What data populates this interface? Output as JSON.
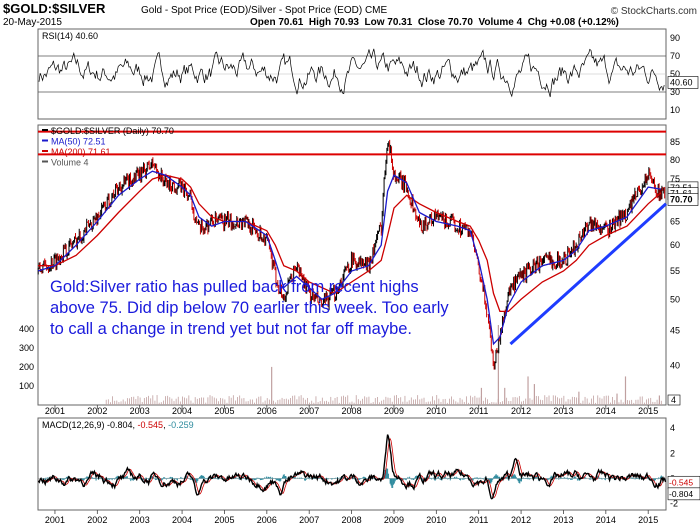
{
  "header": {
    "symbol": "$GOLD:$SILVER",
    "description": "Gold - Spot Price (EOD)/Silver - Spot Price (EOD)",
    "exchange": "CME",
    "date": "20-May-2015",
    "ohlc": "Open 70.61  High 70.93  Low 70.31  Close 70.70  Volume 4  Chg +0.08 (+0.12%)",
    "credit": "© StockCharts.com"
  },
  "annotation": {
    "lines": [
      "Gold:Silver ratio has pulled back from recent highs",
      "above 75. Did dip below 70 earlier this week. Too early",
      "to call a change in trend yet but not far off maybe."
    ]
  },
  "colors": {
    "price": "#000000",
    "price_down": "#cc0000",
    "ma50": "#1a1acc",
    "ma200": "#cc0000",
    "trendline": "#1e3cff",
    "horizontal_lines": "#dd0000",
    "volume": "#c0a0a0",
    "macd": "#000000",
    "signal": "#cc0000",
    "histogram": "#2e8b9e"
  },
  "chart_data": [
    {
      "type": "line",
      "panel": "rsi",
      "legend": "RSI(14) 40.60",
      "yticks": [
        10,
        30,
        50,
        70,
        90
      ],
      "ylim": [
        0,
        100
      ],
      "reference_lines": [
        30,
        70
      ],
      "last_value_label": "40.60",
      "last_value": 40.6
    },
    {
      "type": "line",
      "panel": "price",
      "scale": "log",
      "legend": [
        "$GOLD:$SILVER (Daily) 70.70",
        "MA(50) 72.51",
        "MA(200) 71.61",
        "Volume 4"
      ],
      "x": [
        2000.6,
        2001.0,
        2001.5,
        2002.0,
        2002.5,
        2003.0,
        2003.3,
        2003.6,
        2004.0,
        2004.2,
        2004.4,
        2004.7,
        2005.0,
        2005.5,
        2006.0,
        2006.2,
        2006.4,
        2006.7,
        2007.0,
        2007.3,
        2007.6,
        2008.0,
        2008.4,
        2008.7,
        2008.85,
        2009.0,
        2009.3,
        2009.6,
        2010.0,
        2010.5,
        2010.8,
        2011.0,
        2011.2,
        2011.35,
        2011.5,
        2011.7,
        2012.0,
        2012.5,
        2013.0,
        2013.3,
        2013.6,
        2014.0,
        2014.5,
        2015.0,
        2015.3
      ],
      "values": [
        55,
        57,
        61,
        66,
        73,
        76,
        79,
        74,
        73,
        70,
        63,
        65,
        65,
        65,
        61,
        54,
        50,
        56,
        51,
        49,
        51,
        57,
        56,
        64,
        87,
        76,
        73,
        64,
        66,
        64,
        63,
        55,
        48,
        40,
        44,
        51,
        54,
        57,
        57,
        60,
        65,
        63,
        67,
        76,
        71
      ],
      "ma50": [
        55,
        56,
        60,
        65,
        71,
        75,
        77,
        76,
        73,
        71,
        66,
        64,
        65,
        65,
        62,
        57,
        52,
        54,
        52,
        50,
        51,
        55,
        56,
        60,
        72,
        76,
        74,
        67,
        65,
        64,
        63,
        57,
        50,
        43,
        44,
        49,
        53,
        56,
        57,
        59,
        63,
        64,
        66,
        73,
        72.5
      ],
      "ma200": [
        56,
        56,
        58,
        62,
        67,
        72,
        75,
        76,
        75,
        73,
        69,
        66,
        65,
        65,
        63,
        60,
        56,
        55,
        53,
        52,
        51,
        53,
        55,
        57,
        62,
        68,
        71,
        69,
        67,
        65,
        64,
        61,
        57,
        51,
        48,
        48,
        50,
        53,
        55,
        57,
        60,
        62,
        64,
        69,
        71.6
      ],
      "ylim": [
        35,
        90
      ],
      "yticks": [
        40,
        45,
        50,
        55,
        60,
        65,
        70,
        75,
        80,
        85
      ],
      "horizontal_lines": [
        88,
        81.5
      ],
      "trendline": {
        "from": [
          2011.75,
          43
        ],
        "to": [
          2015.42,
          69
        ]
      },
      "last_value_labels": [
        "72.51",
        "71.61",
        "70.70"
      ],
      "volume_yticks": [
        100,
        200,
        300,
        400
      ],
      "volume_spikes": [
        {
          "x": 2006.1,
          "v": 200
        },
        {
          "x": 2011.05,
          "v": 90
        },
        {
          "x": 2011.45,
          "v": 420
        },
        {
          "x": 2011.6,
          "v": 90
        },
        {
          "x": 2012.15,
          "v": 150
        },
        {
          "x": 2012.3,
          "v": 110
        },
        {
          "x": 2013.35,
          "v": 70
        },
        {
          "x": 2014.25,
          "v": 60
        },
        {
          "x": 2014.45,
          "v": 150
        },
        {
          "x": 2015.25,
          "v": 50
        }
      ],
      "volume_last_label": "4"
    },
    {
      "type": "line",
      "panel": "macd",
      "legend": "MACD(12,26,9) -0.804, -0.545, -0.259",
      "legend_parts": [
        "MACD(12,26,9) -0.804, ",
        "-0.545",
        ", ",
        "-0.259"
      ],
      "yticks": [
        -2,
        0,
        2,
        4
      ],
      "ylim": [
        -2.5,
        4.8
      ],
      "last_value_labels": [
        "-0.545",
        "-0.804"
      ],
      "spikes": [
        {
          "x": 2008.85,
          "v": 4.5
        },
        {
          "x": 2011.3,
          "v": -2.2
        },
        {
          "x": 2006.3,
          "v": -1.6
        },
        {
          "x": 2004.35,
          "v": -1.7
        },
        {
          "x": 2011.85,
          "v": 2.1
        }
      ]
    }
  ],
  "x_axis": {
    "labels": [
      "2001",
      "2002",
      "2003",
      "2004",
      "2005",
      "2006",
      "2007",
      "2008",
      "2009",
      "2010",
      "2011",
      "2012",
      "2013",
      "2014",
      "2015"
    ],
    "range": [
      2000.6,
      2015.42
    ]
  }
}
